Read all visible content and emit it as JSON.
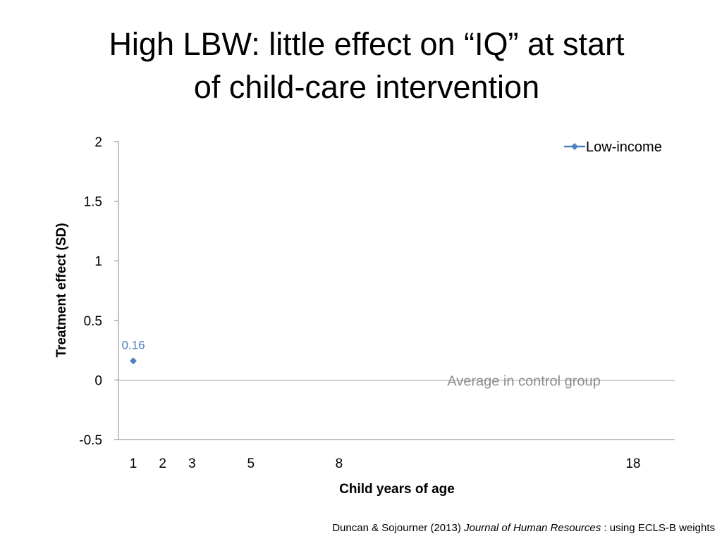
{
  "slide": {
    "title_line1": "High LBW:  little effect on “IQ” at start",
    "title_line2": "of child-care intervention"
  },
  "chart_data": {
    "type": "scatter",
    "title": "",
    "xlabel": "Child years of age",
    "ylabel": "Treatment effect (SD)",
    "ylim": [
      -0.5,
      2
    ],
    "yticks": [
      2,
      1.5,
      1,
      0.5,
      0,
      -0.5
    ],
    "ytick_labels": [
      "2",
      "1.5",
      "1",
      "0.5",
      "0",
      "-0.5"
    ],
    "x_categories": [
      "1",
      "2",
      "3",
      "5",
      "8",
      "18"
    ],
    "series": [
      {
        "name": "Low-income",
        "color": "#4F81BD",
        "marker": "diamond",
        "points": [
          {
            "x": "1",
            "y": 0.16,
            "label": "0.16"
          }
        ]
      }
    ],
    "annotations": [
      {
        "text": "Average in control group",
        "y": 0,
        "color": "#8C8C8C"
      }
    ],
    "legend": {
      "entries": [
        "Low-income"
      ],
      "position": "top-right"
    },
    "grid": false
  },
  "citation": {
    "prefix": "Duncan & Sojourner (2013) ",
    "journal": "Journal of Human Resources",
    "suffix": " : using ECLS-B weights"
  }
}
